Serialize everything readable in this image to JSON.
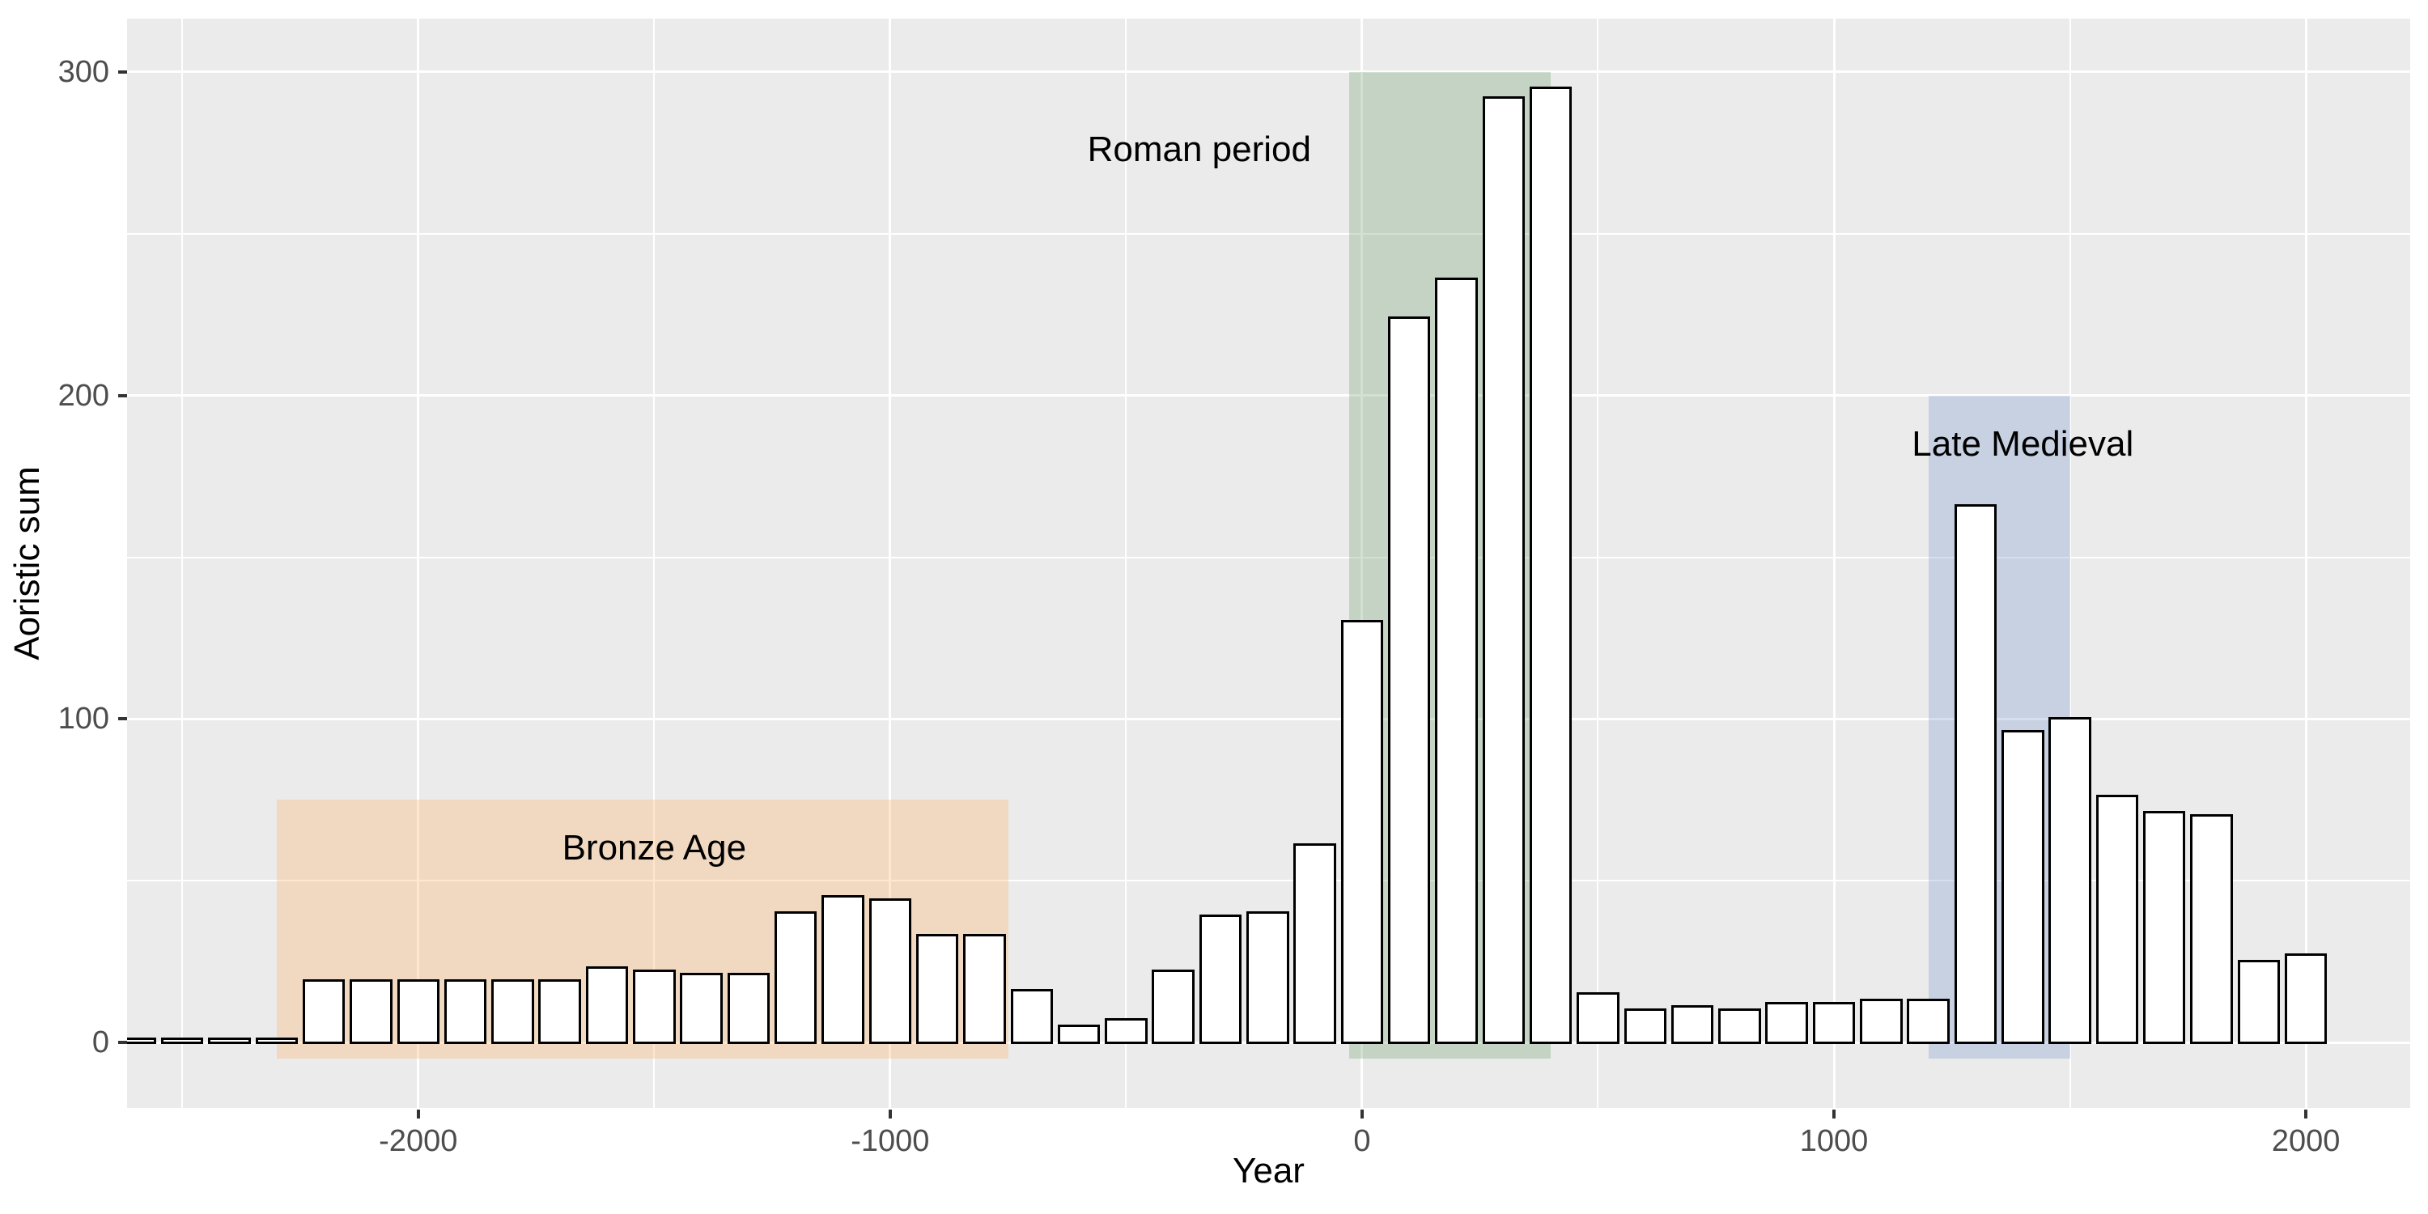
{
  "chart_data": {
    "type": "bar",
    "title": "",
    "xlabel": "Year",
    "ylabel": "Aoristic sum",
    "legend": "none",
    "grid": "on",
    "xlim": [
      -2617,
      2221
    ],
    "ylim": [
      -20.25,
      316.5
    ],
    "x_ticks_major": [
      -2000,
      -1000,
      0,
      1000,
      2000
    ],
    "x_ticks_minor": [
      -2500,
      -1500,
      -500,
      500,
      1500
    ],
    "y_ticks_major": [
      0,
      100,
      200,
      300
    ],
    "y_ticks_minor": [
      50,
      150,
      250
    ],
    "bin_width": 100,
    "bar_rel_width": 0.9,
    "x": [
      -2600,
      -2500,
      -2400,
      -2300,
      -2200,
      -2100,
      -2000,
      -1900,
      -1800,
      -1700,
      -1600,
      -1500,
      -1400,
      -1300,
      -1200,
      -1100,
      -1000,
      -900,
      -800,
      -700,
      -600,
      -500,
      -400,
      -300,
      -200,
      -100,
      0,
      100,
      200,
      300,
      400,
      500,
      600,
      700,
      800,
      900,
      1000,
      1100,
      1200,
      1300,
      1400,
      1500,
      1600,
      1700,
      1800,
      1900,
      2000
    ],
    "values": [
      1,
      1,
      1,
      1,
      19,
      19,
      19,
      19,
      19,
      19,
      23,
      22,
      21,
      21,
      40,
      45,
      44,
      33,
      33,
      16,
      5,
      7,
      22,
      39,
      40,
      61,
      130,
      224,
      236,
      292,
      295,
      15,
      10,
      11,
      10,
      12,
      12,
      13,
      13,
      166,
      96,
      100,
      76,
      71,
      70,
      25,
      27
    ],
    "annotations": [
      {
        "label": "Bronze Age",
        "x0": -2300,
        "x1": -750,
        "y0": -5,
        "y1": 75,
        "fill": "rgba(252,175,92,0.30)",
        "label_x": -1500,
        "label_y": 60
      },
      {
        "label": "Roman period",
        "x0": -27,
        "x1": 400,
        "y0": -5,
        "y1": 300,
        "fill": "rgba(108,155,108,0.30)",
        "label_x": -345,
        "label_y": 276
      },
      {
        "label": "Late Medieval",
        "x0": 1200,
        "x1": 1500,
        "y0": -5,
        "y1": 200,
        "fill": "rgba(115,148,202,0.30)",
        "label_x": 1400,
        "label_y": 185
      }
    ],
    "colors": {
      "panel_bg": "#EBEBEB",
      "grid": "#FFFFFF",
      "bar_fill": "#FFFFFF",
      "bar_stroke": "#000000",
      "tick_label": "#4D4D4D",
      "tick_mark": "#333333",
      "axis_title": "#000000"
    }
  }
}
